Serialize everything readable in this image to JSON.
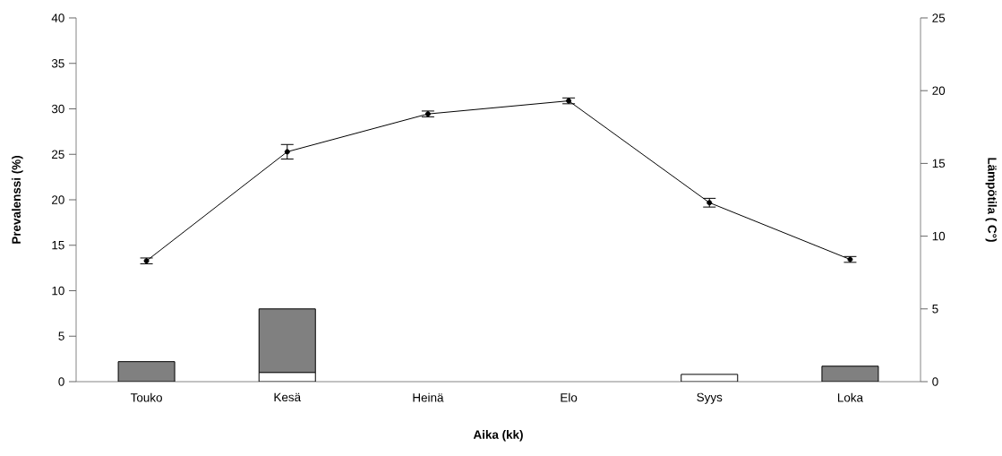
{
  "chart_data": {
    "type": "bar",
    "stacked": true,
    "categories": [
      "Touko",
      "Kesä",
      "Heinä",
      "Elo",
      "Syys",
      "Loka"
    ],
    "xlabel": "Aika (kk)",
    "ylabel": "Prevalenssi (%)",
    "y2label": "Lämpötila ( C°)",
    "ylim": [
      0,
      40
    ],
    "yticks": [
      0,
      5,
      10,
      15,
      20,
      25,
      30,
      35,
      40
    ],
    "y2lim": [
      0,
      25
    ],
    "y2ticks": [
      0,
      5,
      10,
      15,
      20,
      25
    ],
    "marker": "circle",
    "series": [
      {
        "color": "#ffffff",
        "values": [
          0,
          1.0,
          0,
          0,
          0.8,
          0
        ]
      },
      {
        "color": "#808080",
        "values": [
          2.2,
          7.0,
          0,
          0,
          0,
          1.7
        ]
      },
      {
        "type": "line",
        "axis": "y2",
        "color": "#000000",
        "values": [
          8.3,
          15.8,
          18.4,
          19.3,
          12.3,
          8.4
        ],
        "errors": [
          0.2,
          0.5,
          0.2,
          0.2,
          0.3,
          0.2
        ]
      }
    ]
  }
}
